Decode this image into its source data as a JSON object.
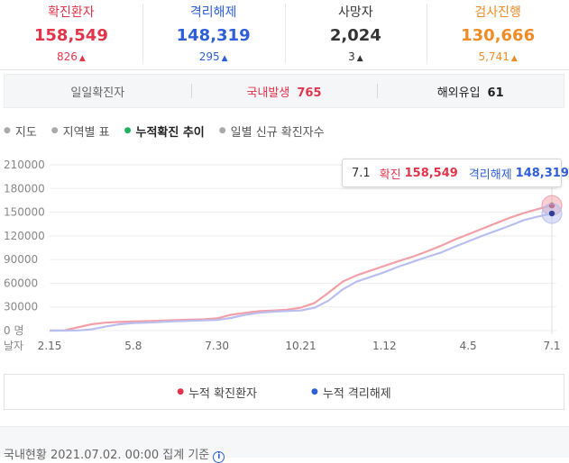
{
  "stats": [
    {
      "label": "확진환자",
      "value": "158,549",
      "delta": "826",
      "color": "#e2344a"
    },
    {
      "label": "격리해제",
      "value": "148,319",
      "delta": "295",
      "color": "#2e5fd6"
    },
    {
      "label": "사망자",
      "value": "2,024",
      "delta": "3",
      "color": "#333333"
    },
    {
      "label": "검사진행",
      "value": "130,666",
      "delta": "5,741",
      "color": "#f08c26"
    }
  ],
  "subbar": {
    "daily_label": "일일확진자",
    "domestic_label": "국내발생",
    "domestic_value": "765",
    "overseas_label": "해외유입",
    "overseas_value": "61"
  },
  "tabs": [
    {
      "label": "지도",
      "active": false
    },
    {
      "label": "지역별 표",
      "active": false
    },
    {
      "label": "누적확진 추이",
      "active": true
    },
    {
      "label": "일별 신규 확진자수",
      "active": false
    }
  ],
  "tooltip": {
    "date": "7.1",
    "confirmed_label": "확진",
    "confirmed_value": "158,549",
    "released_label": "격리해제",
    "released_value": "148,319"
  },
  "chart_data": {
    "type": "line",
    "x_axis_title": "날자",
    "x_tick_labels": [
      "2.15",
      "5.8",
      "7.30",
      "10.21",
      "1.12",
      "4.5",
      "7.1"
    ],
    "y_ticks": [
      0,
      30000,
      60000,
      90000,
      120000,
      150000,
      180000,
      210000
    ],
    "y_tick_labels": [
      "0 명",
      "30000",
      "60000",
      "90000",
      "120000",
      "150000",
      "180000",
      "210000"
    ],
    "ylim": [
      0,
      210000
    ],
    "grid": true,
    "series": [
      {
        "name": "누적 확진환자",
        "color": "#f2a0a8",
        "marker_color": "#c0283e",
        "values": [
          0,
          100,
          4000,
          8000,
          10000,
          11000,
          11500,
          12000,
          12500,
          13200,
          13800,
          14300,
          15500,
          20000,
          22500,
          24500,
          25500,
          26500,
          29000,
          35000,
          48000,
          62000,
          70000,
          76000,
          82000,
          88000,
          93500,
          100000,
          107000,
          115000,
          122000,
          129000,
          136000,
          143000,
          149000,
          154000,
          158549
        ]
      },
      {
        "name": "누적 격리해제",
        "color": "#b8bff0",
        "marker_color": "#2e3d9a",
        "values": [
          0,
          0,
          200,
          1500,
          5000,
          8000,
          9500,
          10000,
          11000,
          11700,
          12300,
          12900,
          13500,
          16000,
          20000,
          22500,
          24000,
          24800,
          25500,
          29000,
          38000,
          52000,
          62000,
          68000,
          74000,
          81000,
          87000,
          93000,
          98500,
          106000,
          113000,
          120000,
          126500,
          133000,
          140000,
          144500,
          148319
        ]
      }
    ]
  },
  "legend": [
    {
      "label": "누적 확진환자",
      "dot_color": "#e2344a"
    },
    {
      "label": "누적 격리해제",
      "dot_color": "#2e5fd6"
    }
  ],
  "footer": {
    "text": "국내현황 2021.07.02. 00:00 집계 기준"
  }
}
